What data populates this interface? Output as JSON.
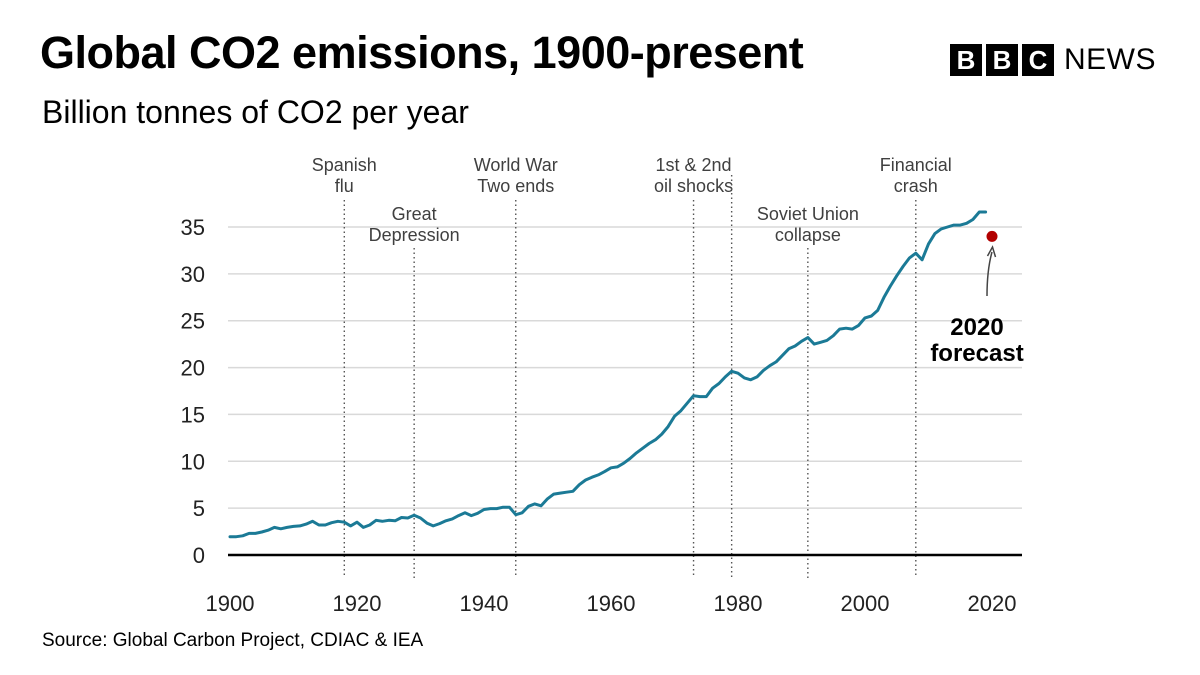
{
  "header": {
    "title": "Global CO2 emissions, 1900-present",
    "subtitle": "Billion tonnes of CO2 per year"
  },
  "logo": {
    "letters": [
      "B",
      "B",
      "C"
    ],
    "word": "NEWS"
  },
  "source": "Source: Global Carbon Project, CDIAC & IEA",
  "colors": {
    "line": "#1b7a96",
    "forecast": "#b20000",
    "axis": "#000000",
    "grid": "#d9d9d9",
    "event_line": "#555555"
  },
  "chart_data": {
    "type": "line",
    "title": "Global CO2 emissions, 1900-present",
    "ylabel": "Billion tonnes of CO2 per year",
    "xlabel": "",
    "xlim": [
      1900,
      2020
    ],
    "ylim": [
      0,
      35
    ],
    "x_ticks": [
      1900,
      1920,
      1940,
      1960,
      1980,
      2000,
      2020
    ],
    "y_ticks": [
      0,
      5,
      10,
      15,
      20,
      25,
      30,
      35
    ],
    "grid": true,
    "series": [
      {
        "name": "Global CO2 emissions",
        "x": [
          1900,
          1901,
          1902,
          1903,
          1904,
          1905,
          1906,
          1907,
          1908,
          1909,
          1910,
          1911,
          1912,
          1913,
          1914,
          1915,
          1916,
          1917,
          1918,
          1919,
          1920,
          1921,
          1922,
          1923,
          1924,
          1925,
          1926,
          1927,
          1928,
          1929,
          1930,
          1931,
          1932,
          1933,
          1934,
          1935,
          1936,
          1937,
          1938,
          1939,
          1940,
          1941,
          1942,
          1943,
          1944,
          1945,
          1946,
          1947,
          1948,
          1949,
          1950,
          1951,
          1952,
          1953,
          1954,
          1955,
          1956,
          1957,
          1958,
          1959,
          1960,
          1961,
          1962,
          1963,
          1964,
          1965,
          1966,
          1967,
          1968,
          1969,
          1970,
          1971,
          1972,
          1973,
          1974,
          1975,
          1976,
          1977,
          1978,
          1979,
          1980,
          1981,
          1982,
          1983,
          1984,
          1985,
          1986,
          1987,
          1988,
          1989,
          1990,
          1991,
          1992,
          1993,
          1994,
          1995,
          1996,
          1997,
          1998,
          1999,
          2000,
          2001,
          2002,
          2003,
          2004,
          2005,
          2006,
          2007,
          2008,
          2009,
          2010,
          2011,
          2012,
          2013,
          2014,
          2015,
          2016,
          2017,
          2018,
          2019
        ],
        "values": [
          1.95,
          1.95,
          2.05,
          2.3,
          2.3,
          2.45,
          2.65,
          2.95,
          2.8,
          2.95,
          3.05,
          3.1,
          3.3,
          3.6,
          3.2,
          3.2,
          3.45,
          3.6,
          3.5,
          3.1,
          3.5,
          2.95,
          3.2,
          3.7,
          3.6,
          3.7,
          3.65,
          4.0,
          3.95,
          4.25,
          3.95,
          3.4,
          3.1,
          3.35,
          3.65,
          3.85,
          4.2,
          4.5,
          4.2,
          4.45,
          4.85,
          4.95,
          4.95,
          5.1,
          5.1,
          4.3,
          4.5,
          5.2,
          5.45,
          5.25,
          6.0,
          6.5,
          6.6,
          6.7,
          6.8,
          7.5,
          8.0,
          8.3,
          8.55,
          8.9,
          9.3,
          9.4,
          9.8,
          10.3,
          10.9,
          11.4,
          11.9,
          12.3,
          12.9,
          13.7,
          14.8,
          15.4,
          16.2,
          17.0,
          16.9,
          16.9,
          17.8,
          18.3,
          19.0,
          19.6,
          19.4,
          18.9,
          18.7,
          19.0,
          19.7,
          20.2,
          20.6,
          21.3,
          22.0,
          22.3,
          22.8,
          23.2,
          22.5,
          22.7,
          22.9,
          23.4,
          24.1,
          24.2,
          24.1,
          24.5,
          25.3,
          25.5,
          26.1,
          27.5,
          28.7,
          29.8,
          30.8,
          31.7,
          32.2,
          31.5,
          33.2,
          34.3,
          34.8,
          35.0,
          35.2,
          35.2,
          35.4,
          35.8,
          36.6,
          36.6
        ]
      }
    ],
    "forecast": {
      "year": 2020,
      "value": 34.0,
      "label_lines": [
        "2020",
        "forecast"
      ]
    },
    "events": [
      {
        "year": 1918,
        "label_lines": [
          "Spanish",
          "flu"
        ],
        "row": 1
      },
      {
        "year": 1929,
        "label_lines": [
          "Great",
          "Depression"
        ],
        "row": 2
      },
      {
        "year": 1945,
        "label_lines": [
          "World War",
          "Two ends"
        ],
        "row": 1
      },
      {
        "year": 1973,
        "label_lines": [
          "1st & 2nd",
          "oil shocks"
        ],
        "row": 1
      },
      {
        "year": 1979
      },
      {
        "year": 1991,
        "label_lines": [
          "Soviet Union",
          "collapse"
        ],
        "row": 2
      },
      {
        "year": 2008,
        "label_lines": [
          "Financial",
          "crash"
        ],
        "row": 1
      }
    ]
  }
}
